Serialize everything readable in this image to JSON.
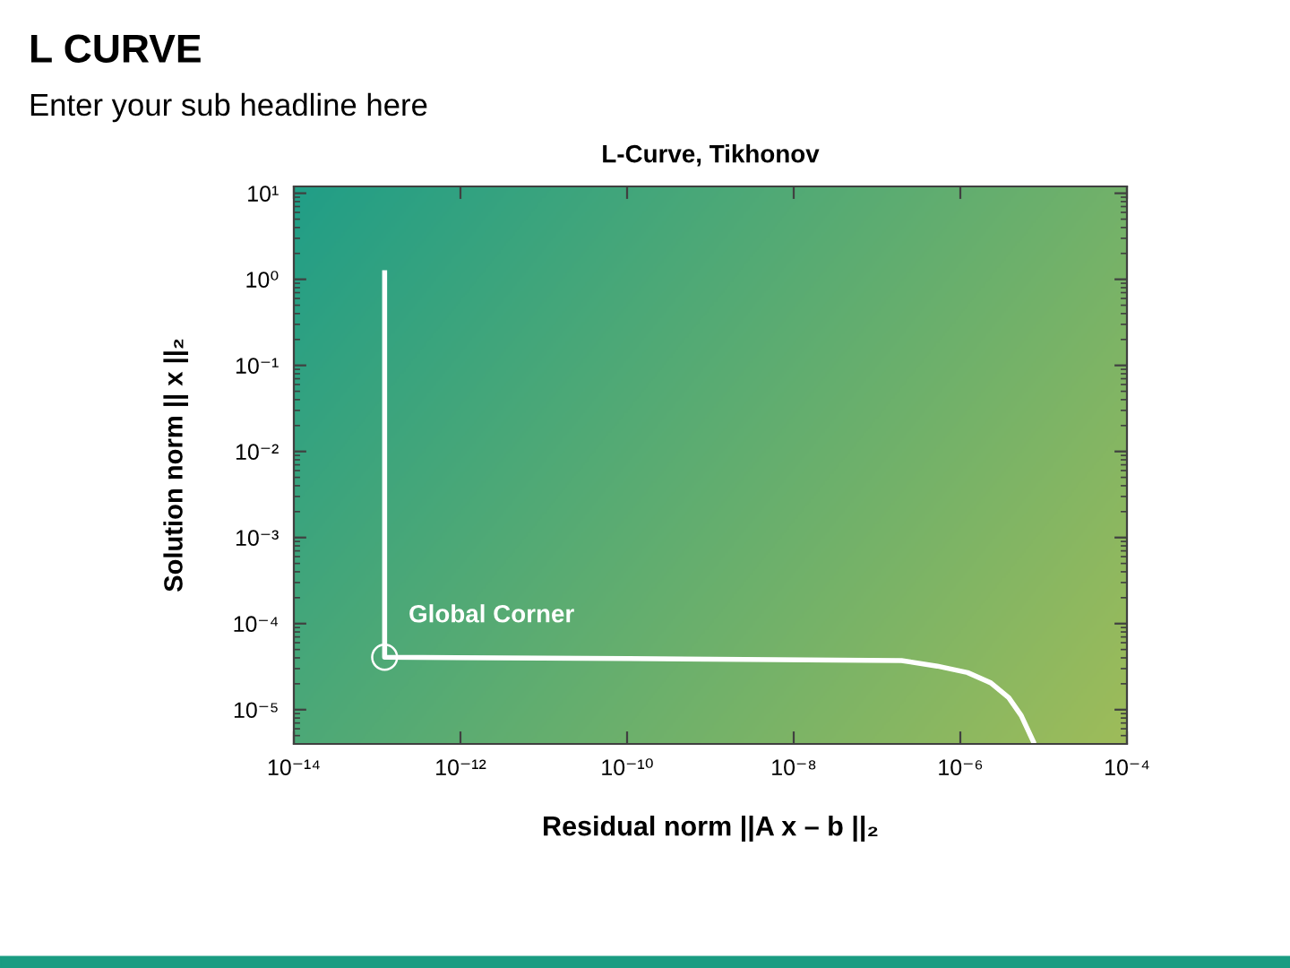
{
  "chart_data": {
    "type": "line",
    "title": "L CURVE",
    "subtitle": "Enter your sub headline here",
    "xlabel": "Residual norm ||A x – b ||₂",
    "ylabel": "Solution norm || x ||₂",
    "annotations": [
      "L-Curve, Tikhonov",
      {
        "text": "Global Corner",
        "x": 1.23e-13,
        "y": 4.07e-05
      }
    ],
    "series": [
      {
        "color": "#ffffff",
        "x": [
          1.23e-13,
          1.23e-13,
          1.03e-10,
          1.97e-07,
          5.28e-07,
          1.22e-06,
          2.32e-06,
          3.81e-06,
          5.38e-06,
          7.5e-06
        ],
        "values": [
          1.19,
          4.07e-05,
          3.92e-05,
          3.72e-05,
          3.21e-05,
          2.7e-05,
          2.05e-05,
          1.38e-05,
          8.53e-06,
          4.28e-06
        ]
      },
      {
        "type": "scatter",
        "marker": "circle",
        "color": "#ffffff",
        "x": [
          1.23e-13
        ],
        "values": [
          4.07e-05
        ]
      }
    ],
    "log": "xy",
    "xlim": [
      1e-14,
      0.0001
    ],
    "ylim": [
      4e-06,
      12
    ],
    "xticks": [
      {
        "value": 1e-14,
        "label": "10⁻¹⁴"
      },
      {
        "value": 1e-12,
        "label": "10⁻¹²"
      },
      {
        "value": 1e-10,
        "label": "10⁻¹⁰"
      },
      {
        "value": 1e-08,
        "label": "10⁻⁸"
      },
      {
        "value": 1e-06,
        "label": "10⁻⁶"
      },
      {
        "value": 0.0001,
        "label": "10⁻⁴"
      }
    ],
    "yticks": [
      {
        "value": 1e-05,
        "label": "10⁻⁵"
      },
      {
        "value": 0.0001,
        "label": "10⁻⁴"
      },
      {
        "value": 0.001,
        "label": "10⁻³"
      },
      {
        "value": 0.01,
        "label": "10⁻²"
      },
      {
        "value": 0.1,
        "label": "10⁻¹"
      },
      {
        "value": 1,
        "label": "10⁰"
      },
      {
        "value": 10,
        "label": "10¹"
      }
    ]
  }
}
